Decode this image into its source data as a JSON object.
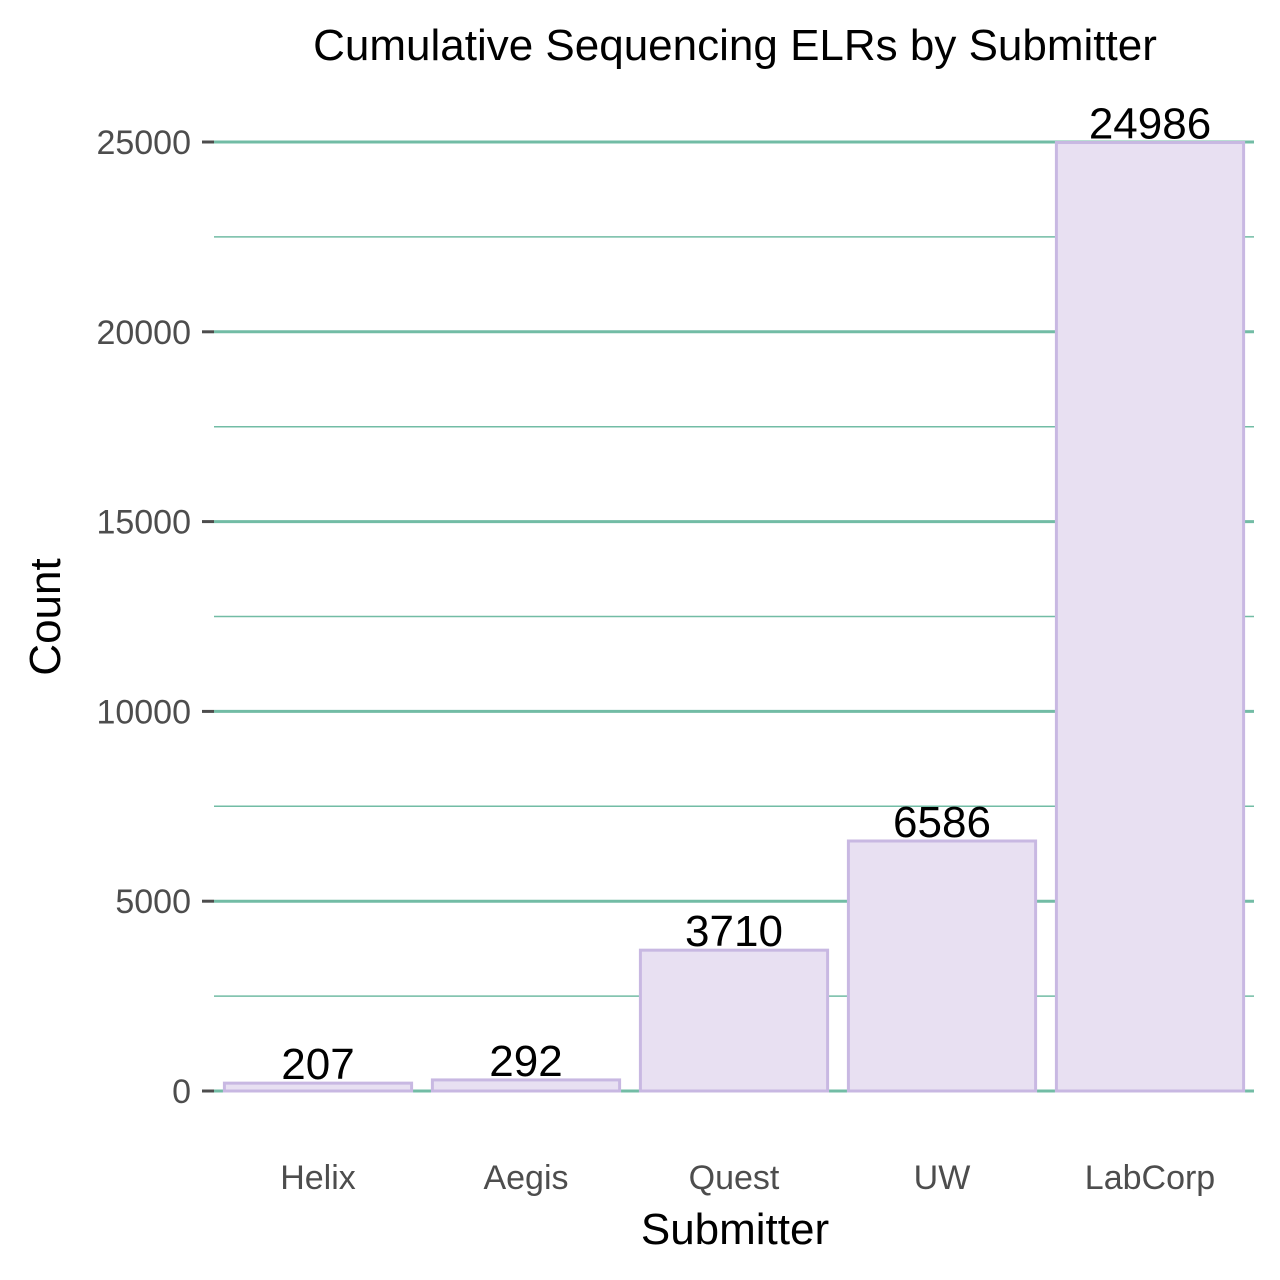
{
  "chart_data": {
    "type": "bar",
    "title": "Cumulative Sequencing ELRs by Submitter",
    "xlabel": "Submitter",
    "ylabel": "Count",
    "categories": [
      "Helix",
      "Aegis",
      "Quest",
      "UW",
      "LabCorp"
    ],
    "values": [
      207,
      292,
      3710,
      6586,
      24986
    ],
    "data_labels": [
      "207",
      "292",
      "3710",
      "6586",
      "24986"
    ],
    "ylim": [
      0,
      25000
    ],
    "yticks": [
      0,
      5000,
      10000,
      15000,
      20000,
      25000
    ],
    "ytick_labels": [
      "0",
      "5000",
      "10000",
      "15000",
      "20000",
      "25000"
    ],
    "grid": "horizontal",
    "legend": "none",
    "colors": {
      "bar_fill": "#e8e0f2",
      "bar_stroke": "#c8b8e2",
      "grid": "#72bca5",
      "tick_text": "#4d4d4d",
      "text": "#000000"
    }
  }
}
